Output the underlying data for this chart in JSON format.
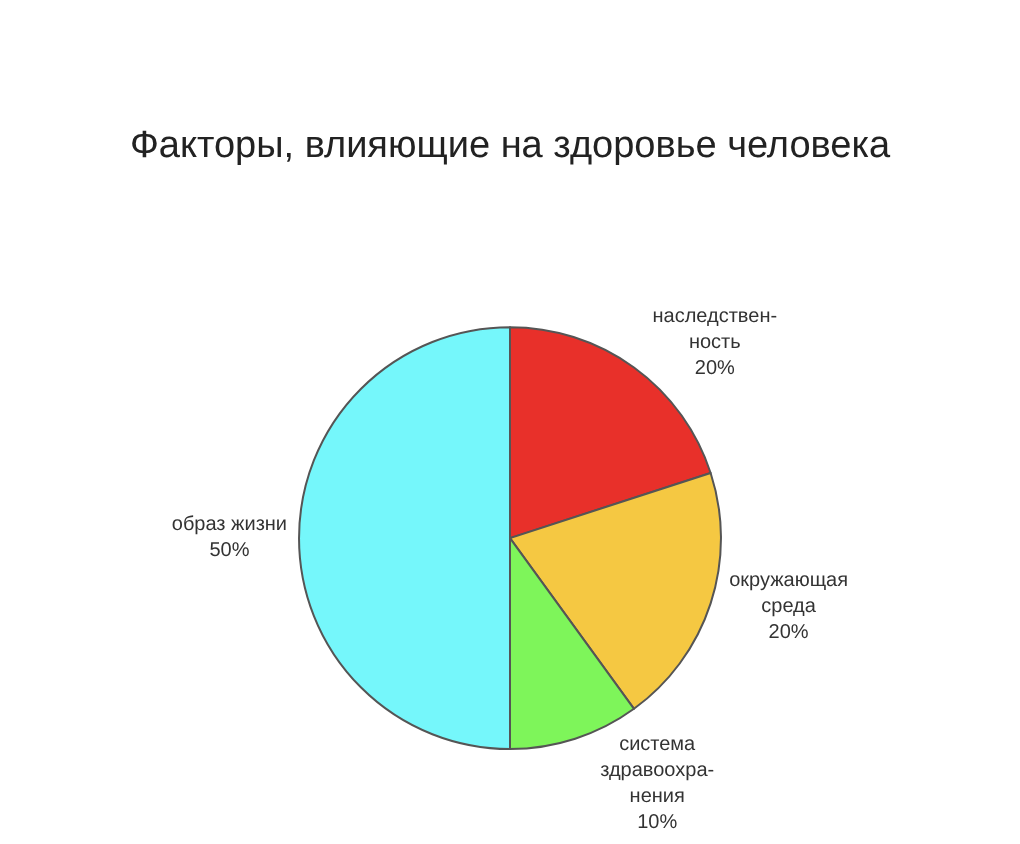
{
  "chart_data": {
    "type": "pie",
    "title": "Факторы, влияющие на здоровье человека",
    "categories": [
      "наследствен-\nность",
      "окружающая\nсреда",
      "система\nздравоохра-\nнения",
      "образ жизни"
    ],
    "values": [
      20,
      20,
      10,
      50
    ],
    "value_labels": [
      "20%",
      "20%",
      "10%",
      "50%"
    ],
    "colors": [
      "#e8302a",
      "#f5c842",
      "#7ef55a",
      "#75f7fb"
    ],
    "legend": false
  }
}
